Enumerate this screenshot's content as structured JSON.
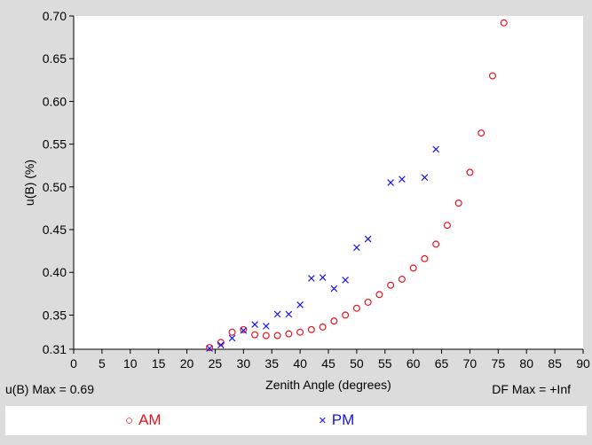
{
  "chart_data": {
    "type": "scatter",
    "title": "",
    "xlabel": "Zenith Angle (degrees)",
    "ylabel": "u(B) (%)",
    "xlim": [
      0,
      90
    ],
    "ylim": [
      0.31,
      0.7
    ],
    "xticks": [
      "0",
      "5",
      "10",
      "15",
      "20",
      "25",
      "30",
      "35",
      "40",
      "45",
      "50",
      "55",
      "60",
      "65",
      "70",
      "75",
      "80",
      "85",
      "90"
    ],
    "yticks": [
      "0.31",
      "0.35",
      "0.40",
      "0.45",
      "0.50",
      "0.55",
      "0.60",
      "0.65",
      "0.70"
    ],
    "grid": false,
    "legend_position": "bottom",
    "series": [
      {
        "name": "AM",
        "marker": "circle",
        "color": "#e8141c",
        "x": [
          24,
          26,
          28,
          30,
          32,
          34,
          36,
          38,
          40,
          42,
          44,
          46,
          48,
          50,
          52,
          54,
          56,
          58,
          60,
          62,
          64,
          66,
          68,
          70,
          72,
          74,
          76
        ],
        "y": [
          0.312,
          0.318,
          0.33,
          0.333,
          0.327,
          0.326,
          0.326,
          0.328,
          0.33,
          0.333,
          0.336,
          0.343,
          0.35,
          0.358,
          0.365,
          0.374,
          0.385,
          0.392,
          0.405,
          0.416,
          0.433,
          0.455,
          0.481,
          0.517,
          0.563,
          0.63,
          0.692
        ]
      },
      {
        "name": "PM",
        "marker": "x",
        "color": "#1414e8",
        "x": [
          24,
          26,
          28,
          30,
          32,
          34,
          36,
          38,
          40,
          42,
          44,
          46,
          48,
          50,
          52,
          56,
          58,
          62,
          64
        ],
        "y": [
          0.311,
          0.315,
          0.323,
          0.332,
          0.339,
          0.337,
          0.351,
          0.351,
          0.362,
          0.393,
          0.394,
          0.381,
          0.391,
          0.429,
          0.439,
          0.505,
          0.509,
          0.511,
          0.544
        ]
      }
    ]
  },
  "footer": {
    "max_left": "u(B) Max = 0.69",
    "max_right": "DF Max = +Inf"
  }
}
